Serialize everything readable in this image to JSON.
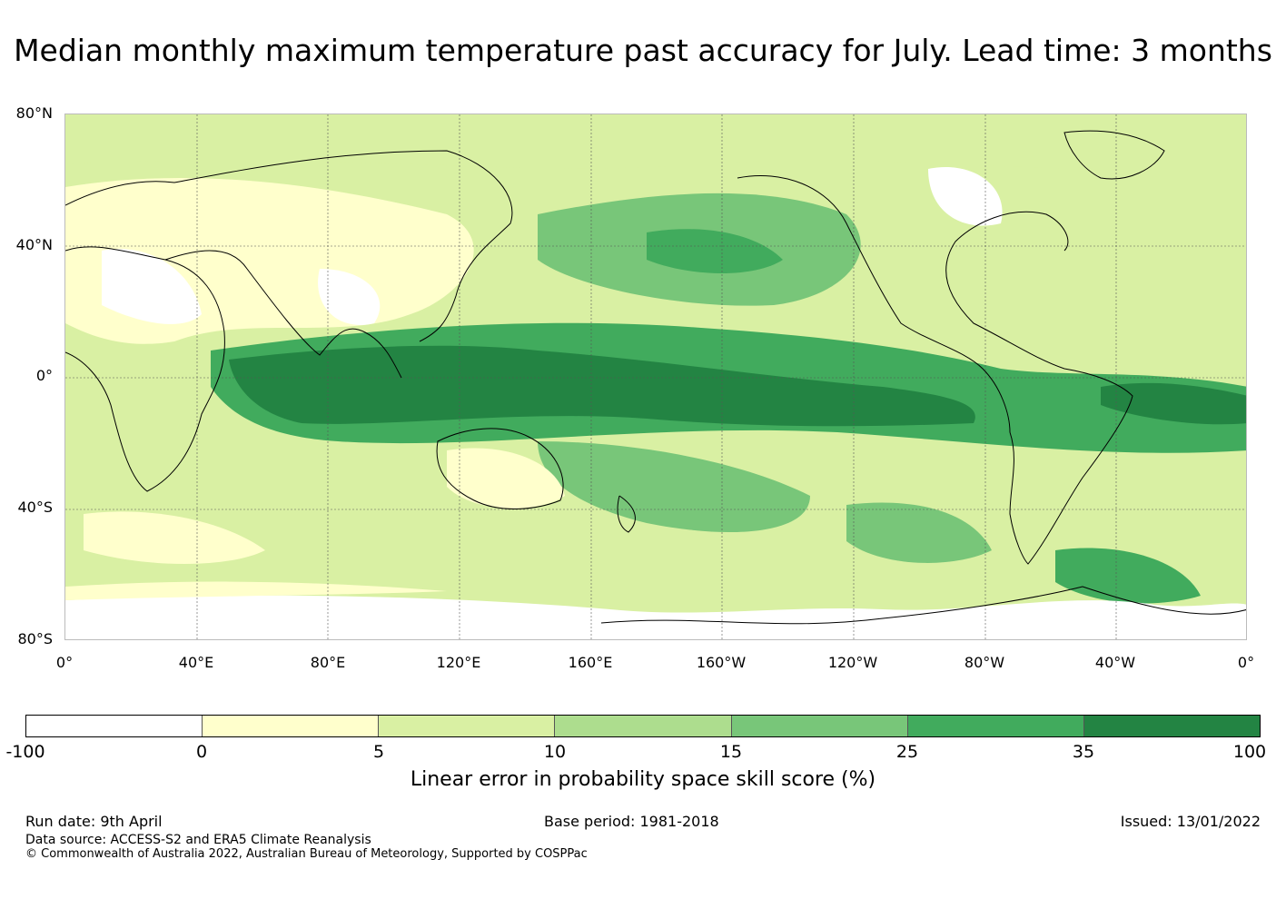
{
  "title": "Median monthly maximum temperature past accuracy for July. Lead time: 3 months",
  "map": {
    "lat_labels": [
      "80°N",
      "40°N",
      "0°",
      "40°S",
      "80°S"
    ],
    "lon_labels": [
      "0°",
      "40°E",
      "80°E",
      "120°E",
      "160°E",
      "160°W",
      "120°W",
      "80°W",
      "40°W",
      "0°"
    ]
  },
  "legend": {
    "colors": [
      "#ffffff",
      "#ffffcc",
      "#d9f0a3",
      "#addd8e",
      "#78c679",
      "#41ab5d",
      "#238443"
    ],
    "ticks": [
      "-100",
      "0",
      "5",
      "10",
      "15",
      "25",
      "35",
      "100"
    ],
    "label": "Linear error in probability space skill score (%)"
  },
  "footer": {
    "run_date": "Run date: 9th April",
    "base_period": "Base period: 1981-2018",
    "issued": "Issued: 13/01/2022",
    "data_source": "Data source: ACCESS-S2 and ERA5 Climate Reanalysis",
    "copyright": "© Commonwealth of Australia 2022, Australian Bureau of Meteorology, Supported by COSPPac"
  }
}
